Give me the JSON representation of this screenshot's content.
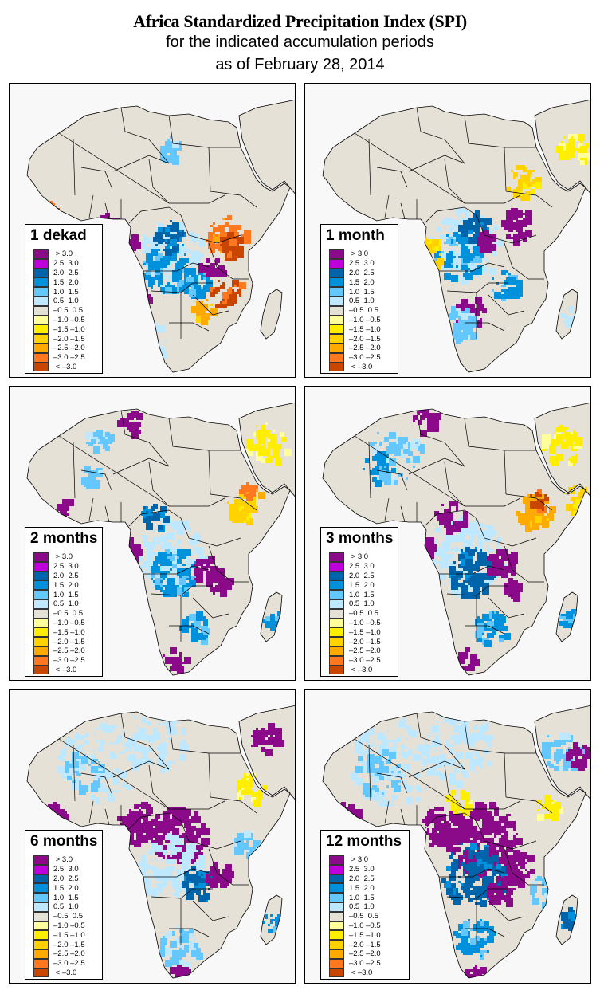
{
  "title": {
    "line1": "Africa Standardized Precipitation Index (SPI)",
    "line2": "for the indicated accumulation periods",
    "line3": "as of February 28, 2014"
  },
  "legend_classes": [
    {
      "label": " > 3.0",
      "color": "#8a0a8a"
    },
    {
      "label": "2.5  3.0",
      "color": "#c000dc"
    },
    {
      "label": "2.0  2.5",
      "color": "#0064aa"
    },
    {
      "label": "1.5  2.0",
      "color": "#0091dc"
    },
    {
      "label": "1.0  1.5",
      "color": "#64c8ff"
    },
    {
      "label": "0.5  1.0",
      "color": "#bee8ff"
    },
    {
      "label": "–0.5  0.5",
      "color": "#e6e1d7"
    },
    {
      "label": "–1.0 –0.5",
      "color": "#ffff9b"
    },
    {
      "label": "–1.5 –1.0",
      "color": "#ffee00"
    },
    {
      "label": "–2.0 –1.5",
      "color": "#ffd200"
    },
    {
      "label": "–2.5 –2.0",
      "color": "#ffaa00"
    },
    {
      "label": "–3.0 –2.5",
      "color": "#ff7820"
    },
    {
      "label": " < –3.0",
      "color": "#c84600"
    }
  ],
  "colors": {
    "land_neutral": "#e6e1d7",
    "ocean": "#f8f8f8",
    "border": "#000000"
  },
  "panels": [
    {
      "id": "1dekad",
      "label": "1 dekad"
    },
    {
      "id": "1month",
      "label": "1 month"
    },
    {
      "id": "2months",
      "label": "2 months"
    },
    {
      "id": "3months",
      "label": "3 months"
    },
    {
      "id": "6months",
      "label": "6 months"
    },
    {
      "id": "12months",
      "label": "12 months"
    }
  ]
}
